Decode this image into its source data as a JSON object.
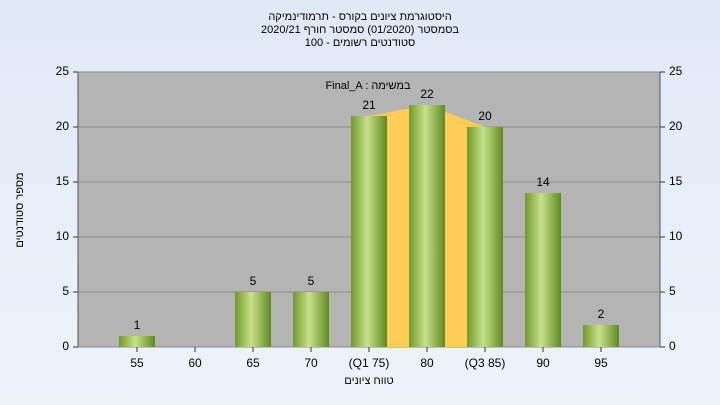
{
  "chart_data": {
    "type": "bar",
    "title": [
      "היסטוגרמת ציונים בקורס - תרמודינמיקה",
      "בסמסטר  (01/2020)  סמסטר חורף  2020/21",
      "סטודנטים רשומים - 100"
    ],
    "annotation": "Final_A : במשימה",
    "x_label": "טווח ציונים",
    "y_label": "מספר סטודנטים",
    "categories": [
      "55",
      "60",
      "65",
      "70",
      "(Q1 75)",
      "80",
      "(Q3 85)",
      "90",
      "95"
    ],
    "values": [
      1,
      0,
      5,
      5,
      21,
      22,
      20,
      14,
      2
    ],
    "color": "#8db83e",
    "ylim": [
      0,
      25
    ],
    "yticks": [
      0,
      5,
      10,
      15,
      20,
      25
    ],
    "y2lim": [
      0,
      25
    ],
    "y2ticks": [
      0,
      5,
      10,
      15,
      20,
      25
    ],
    "grid": true
  }
}
